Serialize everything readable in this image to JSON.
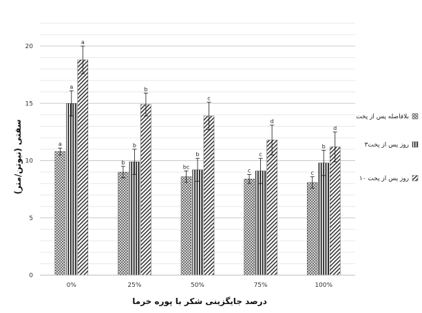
{
  "chart_data": {
    "type": "bar",
    "categories": [
      "0%",
      "25%",
      "50%",
      "75%",
      "100%"
    ],
    "xlabel": "درصد جایگزینی شکر با پوره خرما",
    "ylabel": "سفتی (نیوتن/متر)",
    "ylim": [
      0,
      20
    ],
    "yticks": [
      "0",
      "5",
      "10",
      "15",
      "20"
    ],
    "grid": true,
    "legend_position": "right",
    "series": [
      {
        "name": "بلافاصله پس از پخت",
        "pattern": "dots",
        "values": [
          10.8,
          9.0,
          8.6,
          8.4,
          8.1
        ],
        "errors": [
          0.3,
          0.5,
          0.5,
          0.4,
          0.5
        ],
        "labels": [
          "a",
          "b",
          "bc",
          "c",
          "c"
        ]
      },
      {
        "name": "۳روز پس از پخت",
        "pattern": "vertical",
        "values": [
          15.0,
          9.9,
          9.2,
          9.1,
          9.8
        ],
        "errors": [
          1.1,
          1.1,
          1.0,
          1.1,
          1.1
        ],
        "labels": [
          "a",
          "b",
          "b",
          "c",
          "b"
        ]
      },
      {
        "name": "۱۰ روز پس از پخت",
        "pattern": "diagonal",
        "values": [
          18.8,
          14.9,
          13.9,
          11.8,
          11.2
        ],
        "errors": [
          1.2,
          1.0,
          1.2,
          1.3,
          1.3
        ],
        "labels": [
          "a",
          "b",
          "c",
          "d",
          "d"
        ]
      }
    ]
  }
}
